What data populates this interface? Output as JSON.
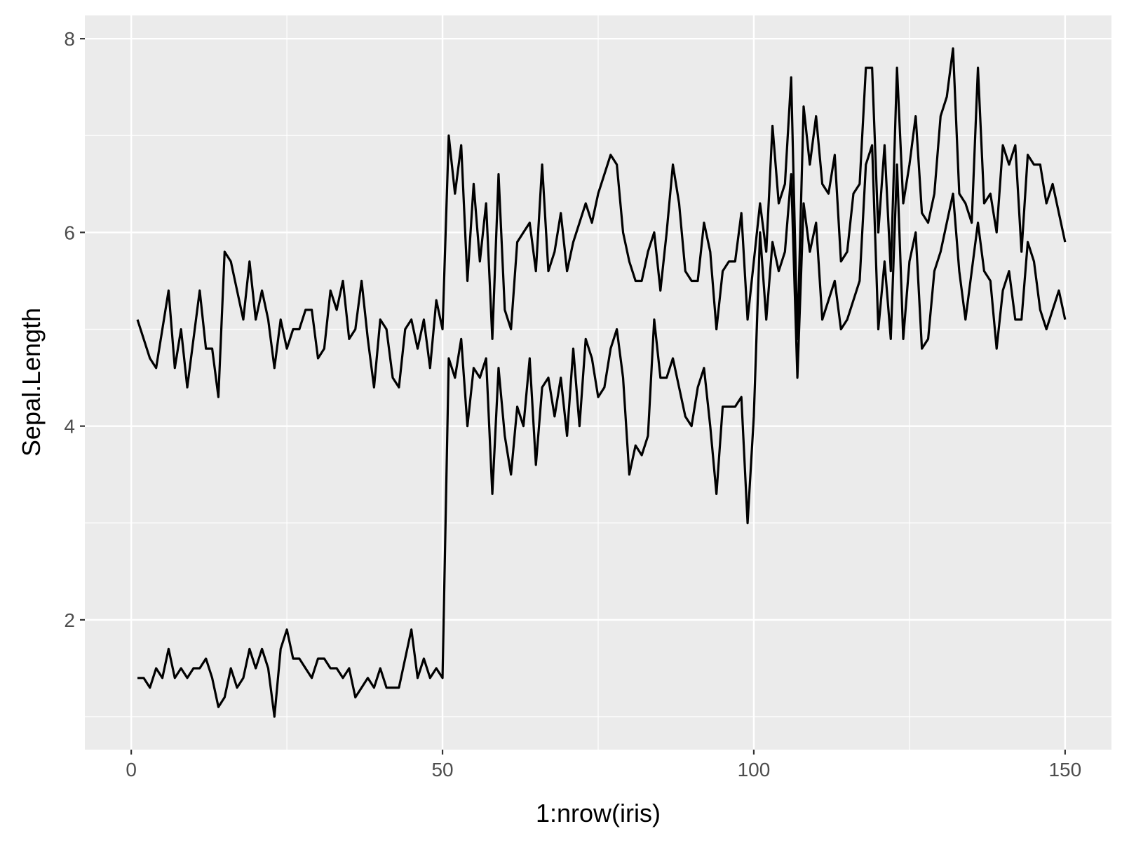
{
  "chart_data": {
    "type": "line",
    "title": "",
    "xlabel": "1:nrow(iris)",
    "ylabel": "Sepal.Length",
    "xlim": [
      -7.45,
      157.45
    ],
    "ylim": [
      0.66,
      8.24
    ],
    "xticks": [
      0,
      50,
      100,
      150
    ],
    "yticks": [
      2,
      4,
      6,
      8
    ],
    "xtick_labels": [
      "0",
      "50",
      "100",
      "150"
    ],
    "ytick_labels": [
      "2",
      "4",
      "6",
      "8"
    ],
    "grid": true,
    "legend": "none",
    "colors": {
      "panel": "#EBEBEB",
      "grid": "#FFFFFF",
      "line": "#000000"
    },
    "series": [
      {
        "x_start": 1,
        "values": [
          5.1,
          4.9,
          4.7,
          4.6,
          5.0,
          5.4,
          4.6,
          5.0,
          4.4,
          4.9,
          5.4,
          4.8,
          4.8,
          4.3,
          5.8,
          5.7,
          5.4,
          5.1,
          5.7,
          5.1,
          5.4,
          5.1,
          4.6,
          5.1,
          4.8,
          5.0,
          5.0,
          5.2,
          5.2,
          4.7,
          4.8,
          5.4,
          5.2,
          5.5,
          4.9,
          5.0,
          5.5,
          4.9,
          4.4,
          5.1,
          5.0,
          4.5,
          4.4,
          5.0,
          5.1,
          4.8,
          5.1,
          4.6,
          5.3,
          5.0,
          7.0,
          6.4,
          6.9,
          5.5,
          6.5,
          5.7,
          6.3,
          4.9,
          6.6,
          5.2,
          5.0,
          5.9,
          6.0,
          6.1,
          5.6,
          6.7,
          5.6,
          5.8,
          6.2,
          5.6,
          5.9,
          6.1,
          6.3,
          6.1,
          6.4,
          6.6,
          6.8,
          6.7,
          6.0,
          5.7,
          5.5,
          5.5,
          5.8,
          6.0,
          5.4,
          6.0,
          6.7,
          6.3,
          5.6,
          5.5,
          5.5,
          6.1,
          5.8,
          5.0,
          5.6,
          5.7,
          5.7,
          6.2,
          5.1,
          5.7,
          6.3,
          5.8,
          7.1,
          6.3,
          6.5,
          7.6,
          4.9,
          7.3,
          6.7,
          7.2,
          6.5,
          6.4,
          6.8,
          5.7,
          5.8,
          6.4,
          6.5,
          7.7,
          7.7,
          6.0,
          6.9,
          5.6,
          7.7,
          6.3,
          6.7,
          7.2,
          6.2,
          6.1,
          6.4,
          7.2,
          7.4,
          7.9,
          6.4,
          6.3,
          6.1,
          7.7,
          6.3,
          6.4,
          6.0,
          6.9,
          6.7,
          6.9,
          5.8,
          6.8,
          6.7,
          6.7,
          6.3,
          6.5,
          6.2,
          5.9
        ]
      },
      {
        "x_start": 1,
        "values": [
          1.4,
          1.4,
          1.3,
          1.5,
          1.4,
          1.7,
          1.4,
          1.5,
          1.4,
          1.5,
          1.5,
          1.6,
          1.4,
          1.1,
          1.2,
          1.5,
          1.3,
          1.4,
          1.7,
          1.5,
          1.7,
          1.5,
          1.0,
          1.7,
          1.9,
          1.6,
          1.6,
          1.5,
          1.4,
          1.6,
          1.6,
          1.5,
          1.5,
          1.4,
          1.5,
          1.2,
          1.3,
          1.4,
          1.3,
          1.5,
          1.3,
          1.3,
          1.3,
          1.6,
          1.9,
          1.4,
          1.6,
          1.4,
          1.5,
          1.4,
          4.7,
          4.5,
          4.9,
          4.0,
          4.6,
          4.5,
          4.7,
          3.3,
          4.6,
          3.9,
          3.5,
          4.2,
          4.0,
          4.7,
          3.6,
          4.4,
          4.5,
          4.1,
          4.5,
          3.9,
          4.8,
          4.0,
          4.9,
          4.7,
          4.3,
          4.4,
          4.8,
          5.0,
          4.5,
          3.5,
          3.8,
          3.7,
          3.9,
          5.1,
          4.5,
          4.5,
          4.7,
          4.4,
          4.1,
          4.0,
          4.4,
          4.6,
          4.0,
          3.3,
          4.2,
          4.2,
          4.2,
          4.3,
          3.0,
          4.1,
          6.0,
          5.1,
          5.9,
          5.6,
          5.8,
          6.6,
          4.5,
          6.3,
          5.8,
          6.1,
          5.1,
          5.3,
          5.5,
          5.0,
          5.1,
          5.3,
          5.5,
          6.7,
          6.9,
          5.0,
          5.7,
          4.9,
          6.7,
          4.9,
          5.7,
          6.0,
          4.8,
          4.9,
          5.6,
          5.8,
          6.1,
          6.4,
          5.6,
          5.1,
          5.6,
          6.1,
          5.6,
          5.5,
          4.8,
          5.4,
          5.6,
          5.1,
          5.1,
          5.9,
          5.7,
          5.2,
          5.0,
          5.2,
          5.4,
          5.1
        ]
      }
    ]
  }
}
